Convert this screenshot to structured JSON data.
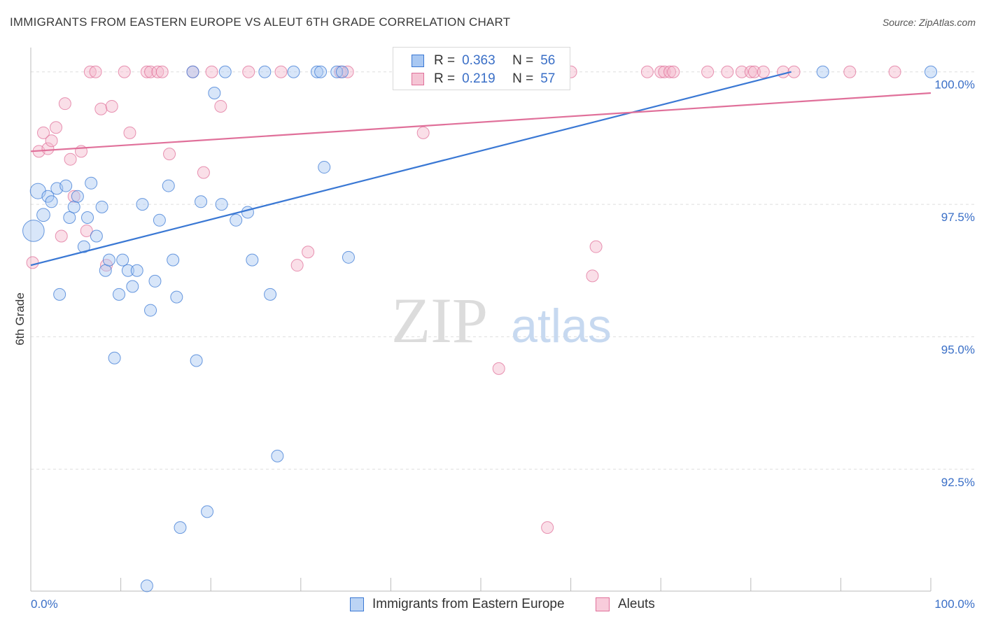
{
  "title": "IMMIGRANTS FROM EASTERN EUROPE VS ALEUT 6TH GRADE CORRELATION CHART",
  "source": "Source: ZipAtlas.com",
  "watermark": {
    "zip": "ZIP",
    "atlas": "atlas"
  },
  "colors": {
    "blue": "#3a78d4",
    "blue_fill": "#a9c8f2",
    "pink": "#e0709a",
    "pink_fill": "#f5b9cd",
    "axis_label": "#3a6fc7",
    "grid": "#dedede"
  },
  "legend_top": [
    {
      "r_label": "R =",
      "r_value": "0.363",
      "n_label": "N =",
      "n_value": "56"
    },
    {
      "r_label": "R =",
      "r_value": "0.219",
      "n_label": "N =",
      "n_value": "57"
    }
  ],
  "chart_data": {
    "type": "scatter",
    "title": "IMMIGRANTS FROM EASTERN EUROPE VS ALEUT 6TH GRADE CORRELATION CHART",
    "xlabel": "",
    "ylabel": "6th Grade",
    "xlim": [
      0,
      100
    ],
    "ylim": [
      90.2,
      100.3
    ],
    "x_tick_labels": [
      "0.0%",
      "100.0%"
    ],
    "y_ticks": [
      92.5,
      95.0,
      97.5,
      100.0
    ],
    "y_tick_labels": [
      "92.5%",
      "95.0%",
      "97.5%",
      "100.0%"
    ],
    "series": [
      {
        "name": "Immigrants from Eastern Europe",
        "color": "#3a78d4",
        "r": 0.363,
        "n": 56,
        "trend": {
          "x": [
            0,
            84.5
          ],
          "y": [
            96.35,
            100.0
          ]
        },
        "points": [
          {
            "x": 0.3,
            "y": 97.0,
            "s": 1.8
          },
          {
            "x": 0.8,
            "y": 97.75,
            "s": 1.3
          },
          {
            "x": 1.4,
            "y": 97.3,
            "s": 1.1
          },
          {
            "x": 1.9,
            "y": 97.65
          },
          {
            "x": 2.3,
            "y": 97.55
          },
          {
            "x": 2.9,
            "y": 97.8
          },
          {
            "x": 3.2,
            "y": 95.8
          },
          {
            "x": 3.9,
            "y": 97.85
          },
          {
            "x": 4.3,
            "y": 97.25
          },
          {
            "x": 4.8,
            "y": 97.45
          },
          {
            "x": 5.2,
            "y": 97.65
          },
          {
            "x": 5.9,
            "y": 96.7
          },
          {
            "x": 6.3,
            "y": 97.25
          },
          {
            "x": 6.7,
            "y": 97.9
          },
          {
            "x": 7.3,
            "y": 96.9
          },
          {
            "x": 7.9,
            "y": 97.45
          },
          {
            "x": 8.3,
            "y": 96.25
          },
          {
            "x": 8.7,
            "y": 96.45
          },
          {
            "x": 9.3,
            "y": 94.6
          },
          {
            "x": 9.8,
            "y": 95.8
          },
          {
            "x": 10.2,
            "y": 96.45
          },
          {
            "x": 10.8,
            "y": 96.25
          },
          {
            "x": 11.3,
            "y": 95.95
          },
          {
            "x": 11.8,
            "y": 96.25
          },
          {
            "x": 12.4,
            "y": 97.5
          },
          {
            "x": 12.9,
            "y": 90.3
          },
          {
            "x": 13.3,
            "y": 95.5
          },
          {
            "x": 13.8,
            "y": 96.05
          },
          {
            "x": 14.3,
            "y": 97.2
          },
          {
            "x": 15.3,
            "y": 97.85
          },
          {
            "x": 15.8,
            "y": 96.45
          },
          {
            "x": 16.2,
            "y": 95.75
          },
          {
            "x": 16.6,
            "y": 91.4
          },
          {
            "x": 18.0,
            "y": 100.0
          },
          {
            "x": 18.4,
            "y": 94.55
          },
          {
            "x": 18.9,
            "y": 97.55
          },
          {
            "x": 19.6,
            "y": 91.7
          },
          {
            "x": 20.4,
            "y": 99.6
          },
          {
            "x": 21.2,
            "y": 97.5
          },
          {
            "x": 21.6,
            "y": 100.0
          },
          {
            "x": 22.8,
            "y": 97.2
          },
          {
            "x": 24.1,
            "y": 97.35
          },
          {
            "x": 24.6,
            "y": 96.45
          },
          {
            "x": 26.0,
            "y": 100.0
          },
          {
            "x": 26.6,
            "y": 95.8
          },
          {
            "x": 27.4,
            "y": 92.75
          },
          {
            "x": 29.2,
            "y": 100.0
          },
          {
            "x": 31.8,
            "y": 100.0
          },
          {
            "x": 32.2,
            "y": 100.0
          },
          {
            "x": 32.6,
            "y": 98.2
          },
          {
            "x": 34.0,
            "y": 100.0
          },
          {
            "x": 34.6,
            "y": 100.0
          },
          {
            "x": 35.3,
            "y": 96.5
          },
          {
            "x": 44.0,
            "y": 100.0
          },
          {
            "x": 88.0,
            "y": 100.0
          },
          {
            "x": 100.0,
            "y": 100.0
          }
        ]
      },
      {
        "name": "Aleuts",
        "color": "#e0709a",
        "r": 0.219,
        "n": 57,
        "trend": {
          "x": [
            0,
            100
          ],
          "y": [
            98.5,
            99.6
          ]
        },
        "points": [
          {
            "x": 0.2,
            "y": 96.4
          },
          {
            "x": 0.9,
            "y": 98.5
          },
          {
            "x": 1.4,
            "y": 98.85
          },
          {
            "x": 1.9,
            "y": 98.55
          },
          {
            "x": 2.3,
            "y": 98.7
          },
          {
            "x": 2.8,
            "y": 98.95
          },
          {
            "x": 3.4,
            "y": 96.9
          },
          {
            "x": 3.8,
            "y": 99.4
          },
          {
            "x": 4.4,
            "y": 98.35
          },
          {
            "x": 4.8,
            "y": 97.65
          },
          {
            "x": 5.6,
            "y": 98.5
          },
          {
            "x": 6.2,
            "y": 97.0
          },
          {
            "x": 6.6,
            "y": 100.0
          },
          {
            "x": 7.2,
            "y": 100.0
          },
          {
            "x": 7.8,
            "y": 99.3
          },
          {
            "x": 8.4,
            "y": 96.35
          },
          {
            "x": 9.0,
            "y": 99.35
          },
          {
            "x": 10.4,
            "y": 100.0
          },
          {
            "x": 11.0,
            "y": 98.85
          },
          {
            "x": 12.9,
            "y": 100.0
          },
          {
            "x": 13.3,
            "y": 100.0
          },
          {
            "x": 14.1,
            "y": 100.0
          },
          {
            "x": 14.6,
            "y": 100.0
          },
          {
            "x": 15.4,
            "y": 98.45
          },
          {
            "x": 18.0,
            "y": 100.0
          },
          {
            "x": 19.2,
            "y": 98.1
          },
          {
            "x": 20.1,
            "y": 100.0
          },
          {
            "x": 21.1,
            "y": 99.35
          },
          {
            "x": 24.2,
            "y": 100.0
          },
          {
            "x": 27.8,
            "y": 100.0
          },
          {
            "x": 29.6,
            "y": 96.35
          },
          {
            "x": 30.8,
            "y": 96.6
          },
          {
            "x": 34.4,
            "y": 100.0
          },
          {
            "x": 35.2,
            "y": 100.0
          },
          {
            "x": 43.6,
            "y": 98.85
          },
          {
            "x": 45.0,
            "y": 100.0
          },
          {
            "x": 52.0,
            "y": 94.4
          },
          {
            "x": 56.0,
            "y": 100.0
          },
          {
            "x": 57.4,
            "y": 91.4
          },
          {
            "x": 60.0,
            "y": 100.0
          },
          {
            "x": 62.4,
            "y": 96.15
          },
          {
            "x": 62.8,
            "y": 96.7
          },
          {
            "x": 68.5,
            "y": 100.0
          },
          {
            "x": 70.0,
            "y": 100.0
          },
          {
            "x": 70.4,
            "y": 100.0
          },
          {
            "x": 71.0,
            "y": 100.0
          },
          {
            "x": 71.4,
            "y": 100.0
          },
          {
            "x": 75.2,
            "y": 100.0
          },
          {
            "x": 77.4,
            "y": 100.0
          },
          {
            "x": 79.0,
            "y": 100.0
          },
          {
            "x": 80.0,
            "y": 100.0
          },
          {
            "x": 80.4,
            "y": 100.0
          },
          {
            "x": 81.4,
            "y": 100.0
          },
          {
            "x": 83.6,
            "y": 100.0
          },
          {
            "x": 84.8,
            "y": 100.0
          },
          {
            "x": 91.0,
            "y": 100.0
          },
          {
            "x": 96.0,
            "y": 100.0
          }
        ]
      }
    ]
  }
}
